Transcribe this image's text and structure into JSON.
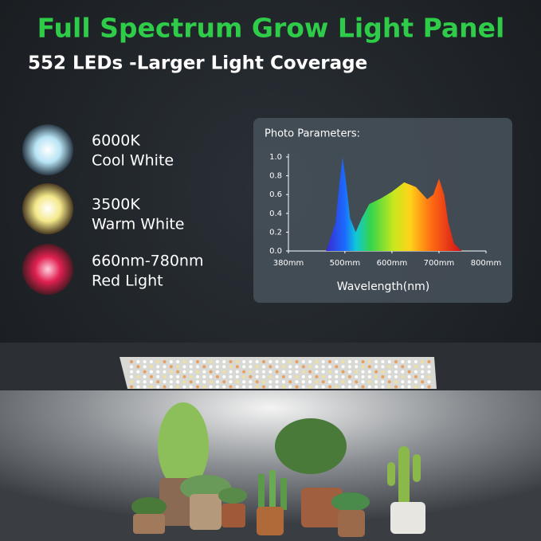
{
  "header": {
    "title": "Full Spectrum Grow Light Panel",
    "subtitle": "552 LEDs -Larger Light Coverage"
  },
  "features": [
    {
      "title": "6000K",
      "subtitle": "Cool White"
    },
    {
      "title": "3500K",
      "subtitle": "Warm White"
    },
    {
      "title": "660nm-780nm",
      "subtitle": "Red Light"
    }
  ],
  "chart_data": {
    "type": "area",
    "title": "Photo Parameters:",
    "x_label": "Wavelength(nm)",
    "x": [
      460,
      480,
      488,
      495,
      502,
      511,
      523,
      536,
      552,
      577,
      600,
      626,
      651,
      675,
      688,
      700,
      711,
      720,
      732,
      748
    ],
    "values": [
      0,
      0.3,
      0.7,
      1.0,
      0.75,
      0.35,
      0.2,
      0.35,
      0.5,
      0.56,
      0.63,
      0.73,
      0.68,
      0.55,
      0.6,
      0.77,
      0.6,
      0.3,
      0.08,
      0
    ],
    "xlim": [
      380,
      800
    ],
    "xticks": [
      {
        "value": 380,
        "label": "380mm"
      },
      {
        "value": 500,
        "label": "500mm"
      },
      {
        "value": 600,
        "label": "600mm"
      },
      {
        "value": 700,
        "label": "700mm"
      },
      {
        "value": 800,
        "label": "800mm"
      }
    ],
    "ylim": [
      0,
      1
    ],
    "yticks": [
      {
        "value": 0,
        "label": "0.0"
      },
      0.2,
      0.4,
      0.6,
      0.8,
      {
        "value": 1,
        "label": "1.0"
      }
    ]
  }
}
